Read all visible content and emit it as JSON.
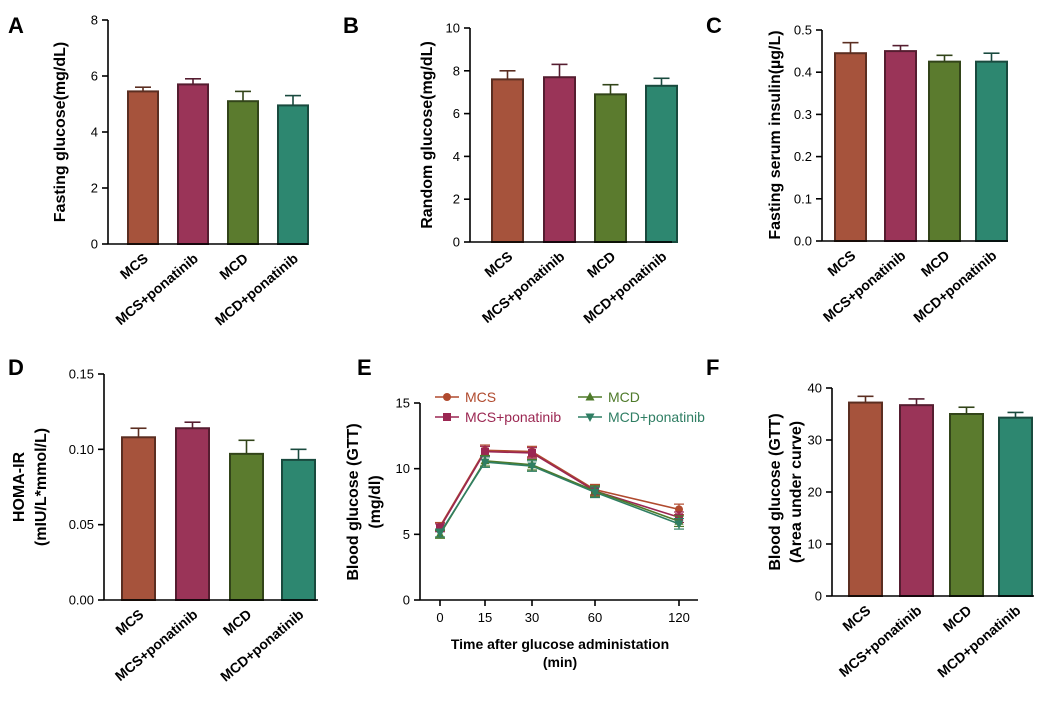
{
  "colors": {
    "MCS": "#A6533C",
    "MCS+ponatinib": "#9A3458",
    "MCD": "#5B7B2E",
    "MCD+ponatinib": "#2D8770",
    "MCS_line": "#B04A2E",
    "MCS+ponatinib_line": "#9B2752",
    "MCD_line": "#4E7A2A",
    "MCD+ponatinib_line": "#2F7E63"
  },
  "chart_data": [
    {
      "panel": "A",
      "type": "bar",
      "categories": [
        "MCS",
        "MCS+ponatinib",
        "MCD",
        "MCD+ponatinib"
      ],
      "values": [
        5.45,
        5.7,
        5.1,
        4.95
      ],
      "errors": [
        0.15,
        0.2,
        0.35,
        0.35
      ],
      "ylabel": "Fasting glucose(mg/dL)",
      "ylim": [
        0,
        8
      ],
      "yticks": [
        "0",
        "2",
        "4",
        "6",
        "8"
      ]
    },
    {
      "panel": "B",
      "type": "bar",
      "categories": [
        "MCS",
        "MCS+ponatinib",
        "MCD",
        "MCD+ponatinib"
      ],
      "values": [
        7.6,
        7.7,
        6.9,
        7.3
      ],
      "errors": [
        0.4,
        0.6,
        0.45,
        0.35
      ],
      "ylabel": "Random glucose(mg/dL)",
      "ylim": [
        0,
        10
      ],
      "yticks": [
        "0",
        "2",
        "4",
        "6",
        "8",
        "10"
      ]
    },
    {
      "panel": "C",
      "type": "bar",
      "categories": [
        "MCS",
        "MCS+ponatinib",
        "MCD",
        "MCD+ponatinib"
      ],
      "values": [
        0.445,
        0.45,
        0.425,
        0.425
      ],
      "errors": [
        0.025,
        0.013,
        0.015,
        0.02
      ],
      "ylabel": "Fasting serum insulin(µg/L)",
      "ylim": [
        0,
        0.5
      ],
      "yticks": [
        "0.0",
        "0.1",
        "0.2",
        "0.3",
        "0.4",
        "0.5"
      ]
    },
    {
      "panel": "D",
      "type": "bar",
      "categories": [
        "MCS",
        "MCS+ponatinib",
        "MCD",
        "MCD+ponatinib"
      ],
      "values": [
        0.108,
        0.114,
        0.097,
        0.093
      ],
      "errors": [
        0.006,
        0.004,
        0.009,
        0.007
      ],
      "ylabel": "HOMA-IR",
      "ylabel2": "(mIU/L*mmol/L)",
      "ylim": [
        0,
        0.15
      ],
      "yticks": [
        "0.00",
        "0.05",
        "0.10",
        "0.15"
      ]
    },
    {
      "panel": "E",
      "type": "line",
      "x": [
        "0",
        "15",
        "30",
        "60",
        "120"
      ],
      "series": [
        {
          "name": "MCS",
          "values": [
            5.6,
            11.4,
            11.3,
            8.4,
            6.9
          ],
          "errors": [
            0.3,
            0.4,
            0.4,
            0.4,
            0.4
          ]
        },
        {
          "name": "MCS+ponatinib",
          "values": [
            5.5,
            11.3,
            11.2,
            8.3,
            6.3
          ],
          "errors": [
            0.3,
            0.4,
            0.4,
            0.4,
            0.4
          ]
        },
        {
          "name": "MCD",
          "values": [
            5.0,
            10.6,
            10.3,
            8.3,
            6.0
          ],
          "errors": [
            0.3,
            0.4,
            0.4,
            0.4,
            0.4
          ]
        },
        {
          "name": "MCD+ponatinib",
          "values": [
            5.1,
            10.5,
            10.2,
            8.2,
            5.8
          ],
          "errors": [
            0.3,
            0.4,
            0.4,
            0.4,
            0.4
          ]
        }
      ],
      "ylabel": "Blood glucose (GTT)",
      "ylabel2": "(mg/dl)",
      "xlabel": "Time after glucose administation",
      "xlabel2": "(min)",
      "ylim": [
        0,
        15
      ],
      "yticks": [
        "0",
        "5",
        "10",
        "15"
      ],
      "legend": [
        "MCS",
        "MCD",
        "MCS+ponatinib",
        "MCD+ponatinib"
      ],
      "legend_position": "top"
    },
    {
      "panel": "F",
      "type": "bar",
      "categories": [
        "MCS",
        "MCS+ponatinib",
        "MCD",
        "MCD+ponatinib"
      ],
      "values": [
        37.2,
        36.7,
        35.0,
        34.3
      ],
      "errors": [
        1.2,
        1.2,
        1.3,
        1.0
      ],
      "ylabel": "Blood glucose (GTT)",
      "ylabel2": "(Area under curve)",
      "ylim": [
        0,
        40
      ],
      "yticks": [
        "0",
        "10",
        "20",
        "30",
        "40"
      ]
    }
  ]
}
